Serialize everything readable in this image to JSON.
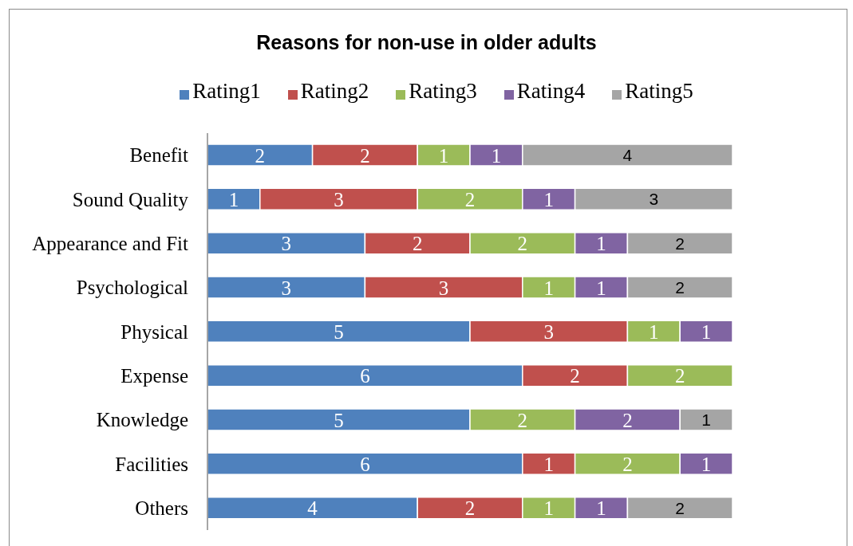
{
  "chart_data": {
    "type": "bar",
    "orientation": "horizontal",
    "stacked": true,
    "title": "Reasons for non-use in older adults",
    "categories": [
      "Benefit",
      "Sound Quality",
      "Appearance and Fit",
      "Psychological",
      "Physical",
      "Expense",
      "Knowledge",
      "Facilities",
      "Others"
    ],
    "series": [
      {
        "name": "Rating1",
        "color": "#4f81bd",
        "values": [
          2,
          1,
          3,
          3,
          5,
          6,
          5,
          6,
          4
        ]
      },
      {
        "name": "Rating2",
        "color": "#c0504d",
        "values": [
          2,
          3,
          2,
          3,
          3,
          2,
          null,
          1,
          2
        ]
      },
      {
        "name": "Rating3",
        "color": "#9bbb59",
        "values": [
          1,
          2,
          2,
          1,
          1,
          2,
          2,
          2,
          1
        ]
      },
      {
        "name": "Rating4",
        "color": "#8064a2",
        "values": [
          1,
          1,
          1,
          1,
          1,
          null,
          2,
          1,
          1
        ]
      },
      {
        "name": "Rating5",
        "color": "#a5a5a5",
        "values": [
          4,
          3,
          2,
          2,
          null,
          null,
          1,
          null,
          2
        ]
      }
    ],
    "data_labels": true,
    "legend": "top"
  }
}
